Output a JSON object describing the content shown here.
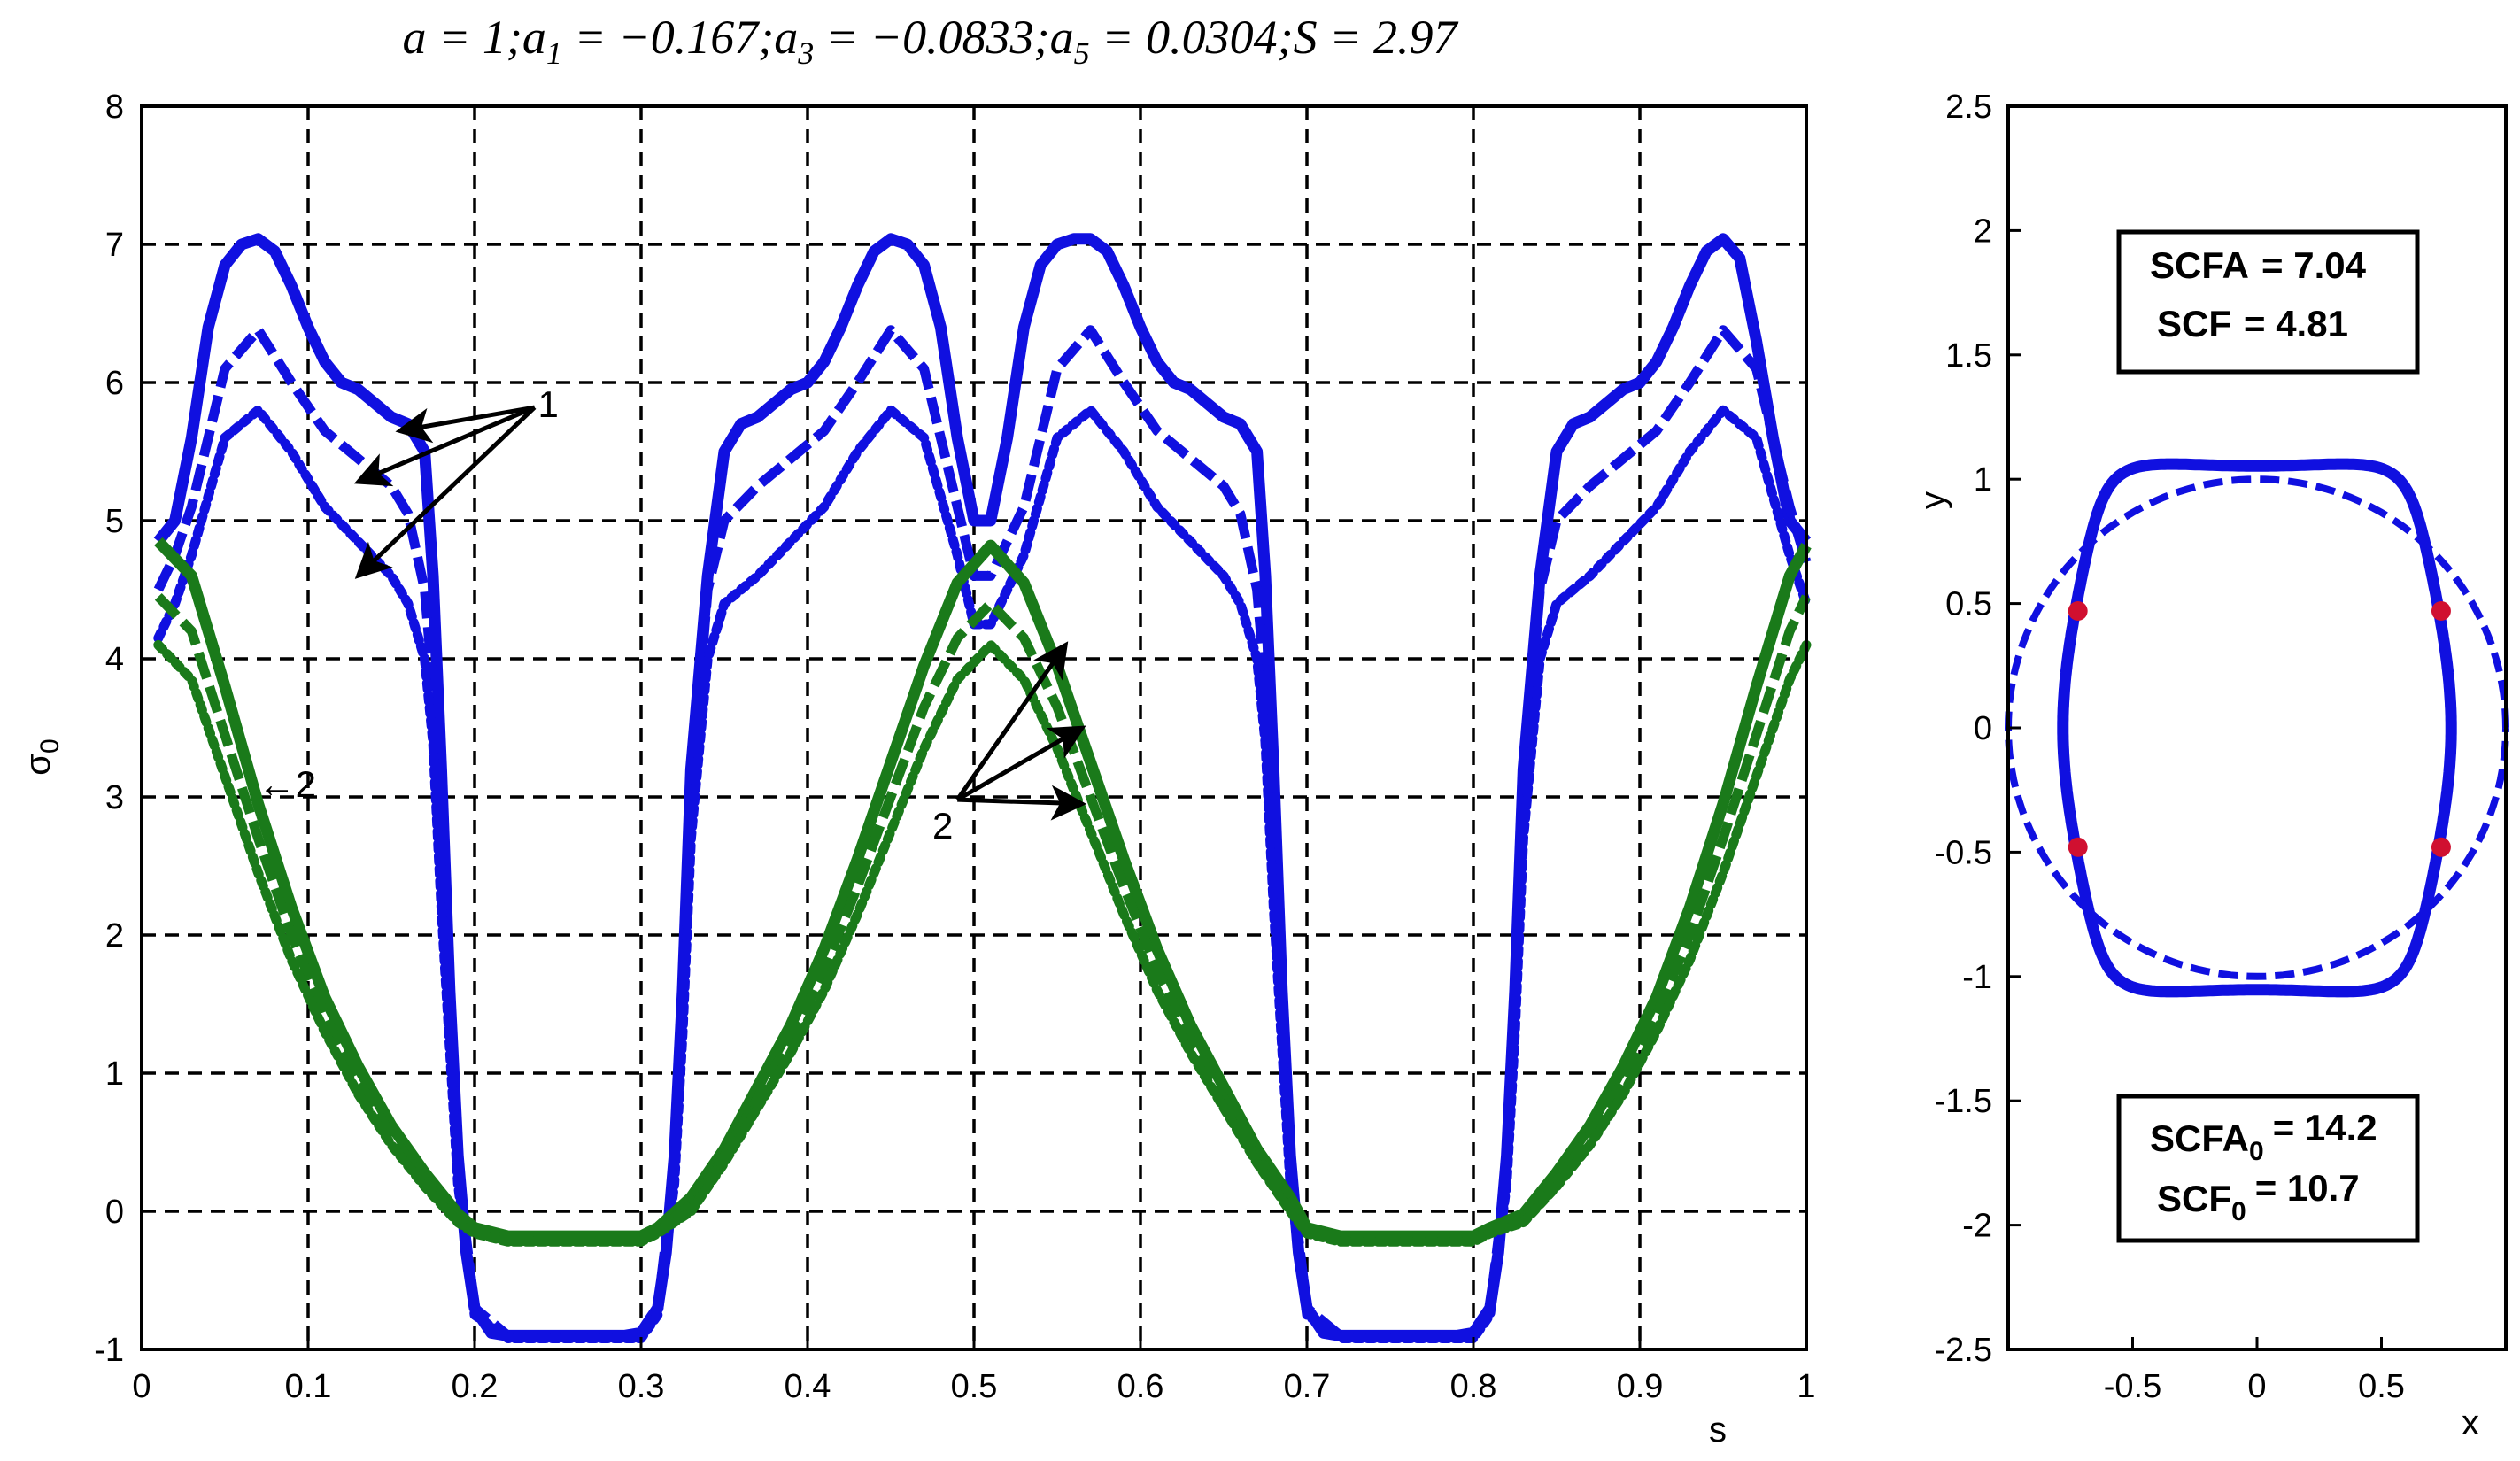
{
  "chart_data": [
    {
      "type": "line",
      "title": "a = 1; a1 = −0.167; a3 = −0.0833; a5 = 0.0304; S = 2.97",
      "title_parts": [
        "a = 1;",
        "a",
        "1",
        " = −0.167;",
        "a",
        "3",
        " = −0.0833;",
        "a",
        "5",
        " = 0.0304;",
        "S = 2.97"
      ],
      "xlabel": "s",
      "ylabel": "σ",
      "ylabel_sub": "0",
      "xlim": [
        0,
        1
      ],
      "ylim": [
        -1,
        8
      ],
      "grid": true,
      "xticks": [
        "0",
        "0.1",
        "0.2",
        "0.3",
        "0.4",
        "0.5",
        "0.6",
        "0.7",
        "0.8",
        "0.9",
        "1"
      ],
      "yticks": [
        "-1",
        "0",
        "1",
        "2",
        "3",
        "4",
        "5",
        "6",
        "7",
        "8"
      ],
      "colors": {
        "blue": "#1010e0",
        "green": "#1a7a1a",
        "arrow": "#000000"
      },
      "annotations": [
        {
          "text": "1",
          "at": [
            0.238,
            5.75
          ]
        },
        {
          "text": "2",
          "at": [
            0.475,
            2.7
          ]
        },
        {
          "text": "←2",
          "at": [
            0.07,
            3.0
          ]
        }
      ],
      "series": [
        {
          "color": "blue",
          "style": "solid",
          "x": [
            0.01,
            0.02,
            0.03,
            0.04,
            0.05,
            0.06,
            0.07,
            0.08,
            0.09,
            0.1,
            0.11,
            0.12,
            0.13,
            0.14,
            0.15,
            0.16,
            0.17,
            0.175,
            0.18,
            0.185,
            0.19,
            0.195,
            0.2,
            0.21,
            0.22,
            0.24,
            0.26,
            0.28,
            0.29,
            0.3,
            0.31,
            0.315,
            0.32,
            0.325,
            0.33,
            0.34,
            0.35,
            0.36,
            0.37,
            0.38,
            0.39,
            0.4,
            0.41,
            0.42,
            0.43,
            0.44,
            0.45,
            0.46,
            0.47,
            0.48,
            0.49,
            0.5,
            0.51,
            0.52,
            0.53,
            0.54,
            0.55,
            0.56,
            0.57,
            0.58,
            0.59,
            0.6,
            0.61,
            0.62,
            0.63,
            0.64,
            0.65,
            0.66,
            0.67,
            0.675,
            0.68,
            0.685,
            0.69,
            0.695,
            0.7,
            0.71,
            0.72,
            0.74,
            0.76,
            0.78,
            0.79,
            0.8,
            0.81,
            0.815,
            0.82,
            0.825,
            0.83,
            0.84,
            0.85,
            0.86,
            0.87,
            0.88,
            0.89,
            0.9,
            0.91,
            0.92,
            0.93,
            0.94,
            0.95,
            0.96,
            0.97,
            0.98,
            0.99,
            1.0
          ],
          "y": [
            4.85,
            5.0,
            5.6,
            6.4,
            6.85,
            7.0,
            7.04,
            6.95,
            6.7,
            6.4,
            6.15,
            6.0,
            5.95,
            5.85,
            5.75,
            5.7,
            5.5,
            4.6,
            3.2,
            1.6,
            0.4,
            -0.3,
            -0.7,
            -0.88,
            -0.9,
            -0.9,
            -0.9,
            -0.9,
            -0.9,
            -0.88,
            -0.7,
            -0.3,
            0.4,
            1.6,
            3.2,
            4.6,
            5.5,
            5.7,
            5.75,
            5.85,
            5.95,
            6.0,
            6.15,
            6.4,
            6.7,
            6.95,
            7.04,
            7.0,
            6.85,
            6.4,
            5.6,
            5.0,
            5.0,
            5.6,
            6.4,
            6.85,
            7.0,
            7.04,
            7.04,
            6.95,
            6.7,
            6.4,
            6.15,
            6.0,
            5.95,
            5.85,
            5.75,
            5.7,
            5.5,
            4.6,
            3.2,
            1.6,
            0.4,
            -0.3,
            -0.7,
            -0.88,
            -0.9,
            -0.9,
            -0.9,
            -0.9,
            -0.9,
            -0.88,
            -0.7,
            -0.3,
            0.4,
            1.6,
            3.2,
            4.6,
            5.5,
            5.7,
            5.75,
            5.85,
            5.95,
            6.0,
            6.15,
            6.4,
            6.7,
            6.95,
            7.04,
            6.9,
            6.3,
            5.6,
            5.0,
            4.85
          ]
        },
        {
          "color": "blue",
          "style": "dashed",
          "x": [
            0.01,
            0.02,
            0.03,
            0.05,
            0.07,
            0.09,
            0.11,
            0.13,
            0.15,
            0.16,
            0.17,
            0.175,
            0.18,
            0.19,
            0.2,
            0.22,
            0.3,
            0.31,
            0.32,
            0.325,
            0.33,
            0.34,
            0.35,
            0.37,
            0.39,
            0.41,
            0.43,
            0.45,
            0.47,
            0.49,
            0.5,
            0.51,
            0.53,
            0.55,
            0.57,
            0.59,
            0.61,
            0.63,
            0.65,
            0.66,
            0.67,
            0.675,
            0.68,
            0.69,
            0.7,
            0.72,
            0.8,
            0.81,
            0.82,
            0.825,
            0.83,
            0.84,
            0.85,
            0.87,
            0.89,
            0.91,
            0.93,
            0.95,
            0.97,
            0.99,
            1.0
          ],
          "y": [
            4.5,
            4.75,
            5.1,
            6.1,
            6.38,
            6.0,
            5.65,
            5.45,
            5.25,
            5.05,
            4.5,
            3.8,
            2.5,
            0.3,
            -0.7,
            -0.9,
            -0.9,
            -0.7,
            0.3,
            1.5,
            3.0,
            4.5,
            5.0,
            5.25,
            5.45,
            5.65,
            6.0,
            6.38,
            6.1,
            5.1,
            4.6,
            4.6,
            5.1,
            6.1,
            6.38,
            6.0,
            5.65,
            5.45,
            5.25,
            5.05,
            4.5,
            3.8,
            2.5,
            0.3,
            -0.7,
            -0.9,
            -0.9,
            -0.7,
            0.3,
            1.5,
            3.0,
            4.5,
            5.0,
            5.25,
            5.45,
            5.65,
            6.0,
            6.38,
            6.1,
            5.1,
            4.7
          ]
        },
        {
          "color": "blue",
          "style": "dotted",
          "x": [
            0.01,
            0.02,
            0.03,
            0.05,
            0.07,
            0.09,
            0.11,
            0.13,
            0.15,
            0.16,
            0.17,
            0.175,
            0.18,
            0.19,
            0.2,
            0.22,
            0.3,
            0.31,
            0.32,
            0.325,
            0.33,
            0.34,
            0.35,
            0.37,
            0.39,
            0.41,
            0.43,
            0.45,
            0.47,
            0.49,
            0.5,
            0.51,
            0.53,
            0.55,
            0.57,
            0.59,
            0.61,
            0.63,
            0.65,
            0.66,
            0.67,
            0.675,
            0.68,
            0.69,
            0.7,
            0.72,
            0.8,
            0.81,
            0.82,
            0.825,
            0.83,
            0.84,
            0.85,
            0.87,
            0.89,
            0.91,
            0.93,
            0.95,
            0.97,
            0.99,
            1.0
          ],
          "y": [
            4.15,
            4.4,
            4.75,
            5.6,
            5.8,
            5.5,
            5.1,
            4.85,
            4.6,
            4.4,
            4.0,
            3.4,
            2.2,
            0.2,
            -0.75,
            -0.92,
            -0.92,
            -0.75,
            0.2,
            1.3,
            2.7,
            4.0,
            4.4,
            4.6,
            4.85,
            5.1,
            5.5,
            5.8,
            5.6,
            4.75,
            4.25,
            4.25,
            4.75,
            5.6,
            5.8,
            5.5,
            5.1,
            4.85,
            4.6,
            4.4,
            4.0,
            3.4,
            2.2,
            0.2,
            -0.75,
            -0.92,
            -0.92,
            -0.75,
            0.2,
            1.3,
            2.7,
            4.0,
            4.4,
            4.6,
            4.85,
            5.1,
            5.5,
            5.8,
            5.6,
            4.75,
            4.4
          ]
        },
        {
          "color": "green",
          "style": "solid",
          "x": [
            0.01,
            0.03,
            0.05,
            0.07,
            0.09,
            0.11,
            0.13,
            0.15,
            0.17,
            0.19,
            0.2,
            0.22,
            0.24,
            0.26,
            0.28,
            0.3,
            0.31,
            0.33,
            0.35,
            0.37,
            0.39,
            0.41,
            0.43,
            0.45,
            0.47,
            0.49,
            0.51,
            0.53,
            0.55,
            0.57,
            0.59,
            0.61,
            0.63,
            0.65,
            0.67,
            0.69,
            0.7,
            0.72,
            0.74,
            0.76,
            0.78,
            0.8,
            0.81,
            0.83,
            0.85,
            0.87,
            0.89,
            0.91,
            0.93,
            0.95,
            0.97,
            0.99,
            1.0
          ],
          "y": [
            4.85,
            4.6,
            3.8,
            2.95,
            2.2,
            1.55,
            1.05,
            0.62,
            0.28,
            -0.02,
            -0.12,
            -0.18,
            -0.18,
            -0.18,
            -0.18,
            -0.18,
            -0.12,
            0.1,
            0.45,
            0.9,
            1.35,
            1.9,
            2.55,
            3.25,
            3.95,
            4.55,
            4.82,
            4.55,
            3.95,
            3.25,
            2.55,
            1.9,
            1.35,
            0.9,
            0.45,
            0.1,
            -0.12,
            -0.18,
            -0.18,
            -0.18,
            -0.18,
            -0.18,
            -0.12,
            -0.02,
            0.28,
            0.62,
            1.05,
            1.55,
            2.2,
            2.95,
            3.8,
            4.6,
            4.82
          ]
        },
        {
          "color": "green",
          "style": "dashed",
          "x": [
            0.01,
            0.03,
            0.05,
            0.07,
            0.09,
            0.11,
            0.13,
            0.15,
            0.17,
            0.19,
            0.2,
            0.22,
            0.3,
            0.31,
            0.33,
            0.35,
            0.37,
            0.39,
            0.41,
            0.43,
            0.45,
            0.47,
            0.49,
            0.51,
            0.53,
            0.55,
            0.57,
            0.59,
            0.61,
            0.63,
            0.65,
            0.67,
            0.69,
            0.7,
            0.72,
            0.8,
            0.81,
            0.83,
            0.85,
            0.87,
            0.89,
            0.91,
            0.93,
            0.95,
            0.97,
            0.99,
            1.0
          ],
          "y": [
            4.45,
            4.2,
            3.45,
            2.7,
            2.0,
            1.42,
            0.95,
            0.55,
            0.22,
            -0.05,
            -0.14,
            -0.2,
            -0.2,
            -0.14,
            0.05,
            0.4,
            0.82,
            1.25,
            1.75,
            2.35,
            3.0,
            3.65,
            4.15,
            4.4,
            4.15,
            3.65,
            3.0,
            2.35,
            1.75,
            1.25,
            0.82,
            0.4,
            0.05,
            -0.14,
            -0.2,
            -0.2,
            -0.14,
            -0.05,
            0.22,
            0.55,
            0.95,
            1.42,
            2.0,
            2.7,
            3.45,
            4.2,
            4.45
          ]
        },
        {
          "color": "green",
          "style": "dotted",
          "x": [
            0.01,
            0.03,
            0.05,
            0.07,
            0.09,
            0.11,
            0.13,
            0.15,
            0.17,
            0.19,
            0.2,
            0.22,
            0.3,
            0.31,
            0.33,
            0.35,
            0.37,
            0.39,
            0.41,
            0.43,
            0.45,
            0.47,
            0.49,
            0.51,
            0.53,
            0.55,
            0.57,
            0.59,
            0.61,
            0.63,
            0.65,
            0.67,
            0.69,
            0.7,
            0.72,
            0.8,
            0.81,
            0.83,
            0.85,
            0.87,
            0.89,
            0.91,
            0.93,
            0.95,
            0.97,
            0.99,
            1.0
          ],
          "y": [
            4.1,
            3.85,
            3.15,
            2.45,
            1.82,
            1.3,
            0.85,
            0.48,
            0.18,
            -0.08,
            -0.16,
            -0.22,
            -0.22,
            -0.16,
            0.0,
            0.35,
            0.75,
            1.15,
            1.6,
            2.15,
            2.75,
            3.35,
            3.85,
            4.1,
            3.85,
            3.35,
            2.75,
            2.15,
            1.6,
            1.15,
            0.75,
            0.35,
            0.0,
            -0.16,
            -0.22,
            -0.22,
            -0.16,
            -0.08,
            0.18,
            0.48,
            0.85,
            1.3,
            1.82,
            2.45,
            3.15,
            3.85,
            4.1
          ]
        }
      ],
      "arrows": [
        {
          "from": [
            0.236,
            5.82
          ],
          "to": [
            0.155,
            5.65
          ]
        },
        {
          "from": [
            0.236,
            5.82
          ],
          "to": [
            0.13,
            5.28
          ]
        },
        {
          "from": [
            0.236,
            5.82
          ],
          "to": [
            0.13,
            4.6
          ]
        },
        {
          "from": [
            0.49,
            2.98
          ],
          "to": [
            0.555,
            4.1
          ]
        },
        {
          "from": [
            0.49,
            2.98
          ],
          "to": [
            0.565,
            3.5
          ]
        },
        {
          "from": [
            0.49,
            2.98
          ],
          "to": [
            0.565,
            2.95
          ]
        }
      ]
    },
    {
      "type": "line",
      "xlabel": "x",
      "ylabel": "y",
      "xlim": [
        -1.0,
        1.0
      ],
      "ylim": [
        -2.5,
        2.5
      ],
      "grid": false,
      "xticks": [
        "-0.5",
        "0",
        "0.5"
      ],
      "xtick_values": [
        -0.5,
        0,
        0.5
      ],
      "yticks": [
        "-2.5",
        "-2",
        "-1.5",
        "-1",
        "-0.5",
        "0",
        "0.5",
        "1",
        "1.5",
        "2",
        "2.5"
      ],
      "colors": {
        "shape": "#1010e0",
        "circle": "#1010e0",
        "points": "#d01030"
      },
      "shape": {
        "a": 1,
        "a1": -0.167,
        "a3": -0.0833,
        "a5": 0.0304
      },
      "unit_circle_radius": 1,
      "marked_points": [
        [
          -0.72,
          0.47
        ],
        [
          0.74,
          0.47
        ],
        [
          -0.72,
          -0.48
        ],
        [
          0.74,
          -0.48
        ]
      ],
      "boxes": [
        {
          "lines": [
            {
              "label": "SCFA",
              "sub": "",
              "value": "= 7.04"
            },
            {
              "label": "SCF",
              "sub": "",
              "value": "= 4.81"
            }
          ]
        },
        {
          "lines": [
            {
              "label": "SCFA",
              "sub": "0",
              "value": "= 14.2"
            },
            {
              "label": "SCF",
              "sub": "0",
              "value": "= 10.7"
            }
          ]
        }
      ]
    }
  ]
}
